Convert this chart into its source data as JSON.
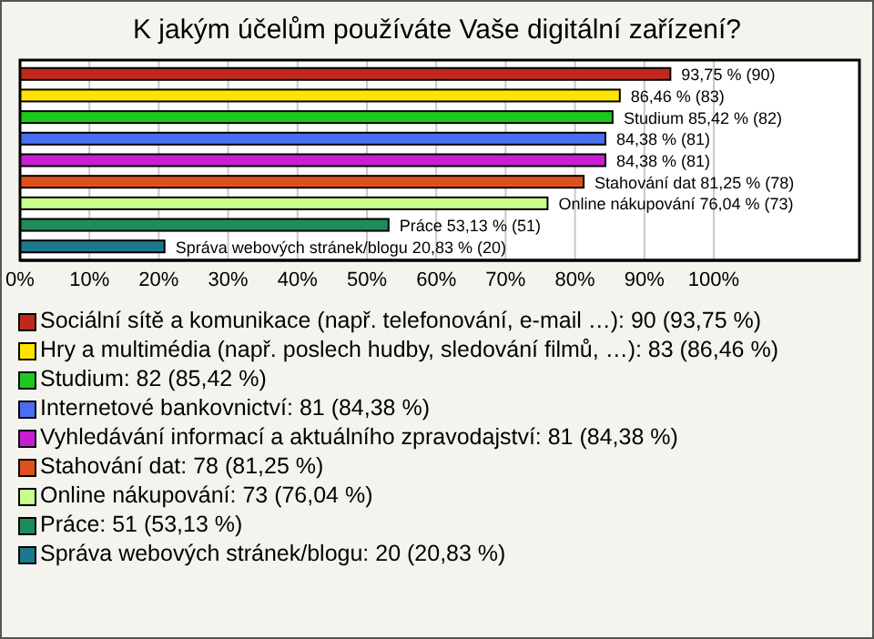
{
  "chart_data": {
    "type": "bar",
    "orientation": "horizontal",
    "stacked": true,
    "title": "K jakým účelům používáte Vaše digitální zařízení?",
    "categories": [
      null,
      null,
      null,
      null,
      null,
      null,
      null,
      null,
      null
    ],
    "series": [
      {
        "name": "Sociální sítě a komunikace (např. telefonování, e-mail …): 90 (93,75 %)",
        "color": "#c0281c",
        "values": [
          93.75,
          null,
          null,
          null,
          null,
          null,
          null,
          null,
          null
        ],
        "value_labels": [
          "93,75 % (90)",
          null,
          null,
          null,
          null,
          null,
          null,
          null,
          null
        ]
      },
      {
        "name": "Hry a multimédia (např. poslech hudby, sledování filmů, …): 83 (86,46 %)",
        "color": "#ffe400",
        "values": [
          null,
          86.46,
          null,
          null,
          null,
          null,
          null,
          null,
          null
        ],
        "value_labels": [
          null,
          "86,46 % (83)",
          null,
          null,
          null,
          null,
          null,
          null,
          null
        ]
      },
      {
        "name": "Studium: 82 (85,42 %)",
        "color": "#1ec81e",
        "values": [
          null,
          null,
          85.42,
          null,
          null,
          null,
          null,
          null,
          null
        ],
        "value_labels": [
          null,
          null,
          "Studium 85,42 % (82)",
          null,
          null,
          null,
          null,
          null,
          null
        ]
      },
      {
        "name": "Internetové bankovnictví: 81 (84,38 %)",
        "color": "#4a6ef0",
        "values": [
          null,
          null,
          null,
          84.38,
          null,
          null,
          null,
          null,
          null
        ],
        "value_labels": [
          null,
          null,
          null,
          "84,38 % (81)",
          null,
          null,
          null,
          null,
          null
        ]
      },
      {
        "name": "Vyhledávání informací a aktuálního zpravodajství: 81 (84,38 %)",
        "color": "#c81ed2",
        "values": [
          null,
          null,
          null,
          null,
          84.38,
          null,
          null,
          null,
          null
        ],
        "value_labels": [
          null,
          null,
          null,
          null,
          "84,38 % (81)",
          null,
          null,
          null,
          null
        ]
      },
      {
        "name": "Stahování dat: 78 (81,25 %)",
        "color": "#e0501e",
        "values": [
          null,
          null,
          null,
          null,
          null,
          81.25,
          null,
          null,
          null
        ],
        "value_labels": [
          null,
          null,
          null,
          null,
          null,
          "Stahování dat 81,25 % (78)",
          null,
          null,
          null
        ]
      },
      {
        "name": "Online nákupování: 73 (76,04 %)",
        "color": "#c8ff8c",
        "values": [
          null,
          null,
          null,
          null,
          null,
          null,
          76.04,
          null,
          null
        ],
        "value_labels": [
          null,
          null,
          null,
          null,
          null,
          null,
          "Online nákupování 76,04 % (73)",
          null,
          null
        ]
      },
      {
        "name": "Práce: 51 (53,13 %)",
        "color": "#1e8c5a",
        "values": [
          null,
          null,
          null,
          null,
          null,
          null,
          null,
          53.13,
          null
        ],
        "value_labels": [
          null,
          null,
          null,
          null,
          null,
          null,
          null,
          "Práce 53,13 % (51)",
          null
        ]
      },
      {
        "name": "Správa webových stránek/blogu: 20 (20,83 %)",
        "color": "#1e788c",
        "values": [
          null,
          null,
          null,
          null,
          null,
          null,
          null,
          null,
          20.83
        ],
        "value_labels": [
          null,
          null,
          null,
          null,
          null,
          null,
          null,
          null,
          "Správa webových stránek/blogu 20,83 % (20)"
        ]
      }
    ],
    "xlim": [
      0,
      121
    ],
    "xticks": [
      {
        "value": 0,
        "label": "0%"
      },
      {
        "value": 10,
        "label": "10%"
      },
      {
        "value": 20,
        "label": "20%"
      },
      {
        "value": 30,
        "label": "30%"
      },
      {
        "value": 40,
        "label": "40%"
      },
      {
        "value": 50,
        "label": "50%"
      },
      {
        "value": 60,
        "label": "60%"
      },
      {
        "value": 70,
        "label": "70%"
      },
      {
        "value": 80,
        "label": "80%"
      },
      {
        "value": 90,
        "label": "90%"
      },
      {
        "value": 100,
        "label": "100%"
      }
    ],
    "grid": "x",
    "tick_labels": "x",
    "legend": "bottom"
  }
}
